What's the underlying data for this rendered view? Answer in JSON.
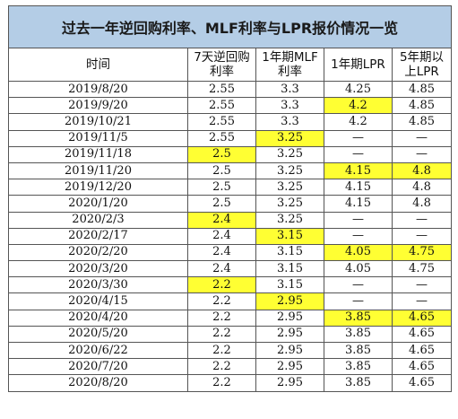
{
  "title": "过去一年逆回购利率、MLF利率与LPR报价情况一览",
  "columns": [
    "时间",
    "7天逆回购利率",
    "1年期MLF利率",
    "1年期LPR",
    "5年期以上LPR"
  ],
  "rows": [
    {
      "cells": [
        "2019/8/20",
        "2.55",
        "3.3",
        "4.25",
        "4.85"
      ],
      "highlight": [
        false,
        false,
        false,
        false,
        false
      ]
    },
    {
      "cells": [
        "2019/9/20",
        "2.55",
        "3.3",
        "4.2",
        "4.85"
      ],
      "highlight": [
        false,
        false,
        false,
        true,
        false
      ]
    },
    {
      "cells": [
        "2019/10/21",
        "2.55",
        "3.3",
        "4.2",
        "4.85"
      ],
      "highlight": [
        false,
        false,
        false,
        false,
        false
      ]
    },
    {
      "cells": [
        "2019/11/5",
        "2.55",
        "3.25",
        "—",
        "—"
      ],
      "highlight": [
        false,
        false,
        true,
        false,
        false
      ]
    },
    {
      "cells": [
        "2019/11/18",
        "2.5",
        "3.25",
        "—",
        "—"
      ],
      "highlight": [
        false,
        true,
        false,
        false,
        false
      ]
    },
    {
      "cells": [
        "2019/11/20",
        "2.5",
        "3.25",
        "4.15",
        "4.8"
      ],
      "highlight": [
        false,
        false,
        false,
        true,
        true
      ]
    },
    {
      "cells": [
        "2019/12/20",
        "2.5",
        "3.25",
        "4.15",
        "4.8"
      ],
      "highlight": [
        false,
        false,
        false,
        false,
        false
      ]
    },
    {
      "cells": [
        "2020/1/20",
        "2.5",
        "3.25",
        "4.15",
        "4.8"
      ],
      "highlight": [
        false,
        false,
        false,
        false,
        false
      ]
    },
    {
      "cells": [
        "2020/2/3",
        "2.4",
        "3.25",
        "—",
        "—"
      ],
      "highlight": [
        false,
        true,
        false,
        false,
        false
      ]
    },
    {
      "cells": [
        "2020/2/17",
        "2.4",
        "3.15",
        "—",
        "—"
      ],
      "highlight": [
        false,
        false,
        true,
        false,
        false
      ]
    },
    {
      "cells": [
        "2020/2/20",
        "2.4",
        "3.15",
        "4.05",
        "4.75"
      ],
      "highlight": [
        false,
        false,
        false,
        true,
        true
      ]
    },
    {
      "cells": [
        "2020/3/20",
        "2.4",
        "3.15",
        "4.05",
        "4.75"
      ],
      "highlight": [
        false,
        false,
        false,
        false,
        false
      ]
    },
    {
      "cells": [
        "2020/3/30",
        "2.2",
        "3.15",
        "—",
        "—"
      ],
      "highlight": [
        false,
        true,
        false,
        false,
        false
      ]
    },
    {
      "cells": [
        "2020/4/15",
        "2.2",
        "2.95",
        "—",
        "—"
      ],
      "highlight": [
        false,
        false,
        true,
        false,
        false
      ]
    },
    {
      "cells": [
        "2020/4/20",
        "2.2",
        "2.95",
        "3.85",
        "4.65"
      ],
      "highlight": [
        false,
        false,
        false,
        true,
        true
      ]
    },
    {
      "cells": [
        "2020/5/20",
        "2.2",
        "2.95",
        "3.85",
        "4.65"
      ],
      "highlight": [
        false,
        false,
        false,
        false,
        false
      ]
    },
    {
      "cells": [
        "2020/6/22",
        "2.2",
        "2.95",
        "3.85",
        "4.65"
      ],
      "highlight": [
        false,
        false,
        false,
        false,
        false
      ]
    },
    {
      "cells": [
        "2020/7/20",
        "2.2",
        "2.95",
        "3.85",
        "4.65"
      ],
      "highlight": [
        false,
        false,
        false,
        false,
        false
      ]
    },
    {
      "cells": [
        "2020/8/20",
        "2.2",
        "2.95",
        "3.85",
        "4.65"
      ],
      "highlight": [
        false,
        false,
        false,
        false,
        false
      ]
    }
  ],
  "colors": {
    "title_bg": "#b4cde6",
    "highlight": "#ffff33",
    "border": "#555555"
  }
}
